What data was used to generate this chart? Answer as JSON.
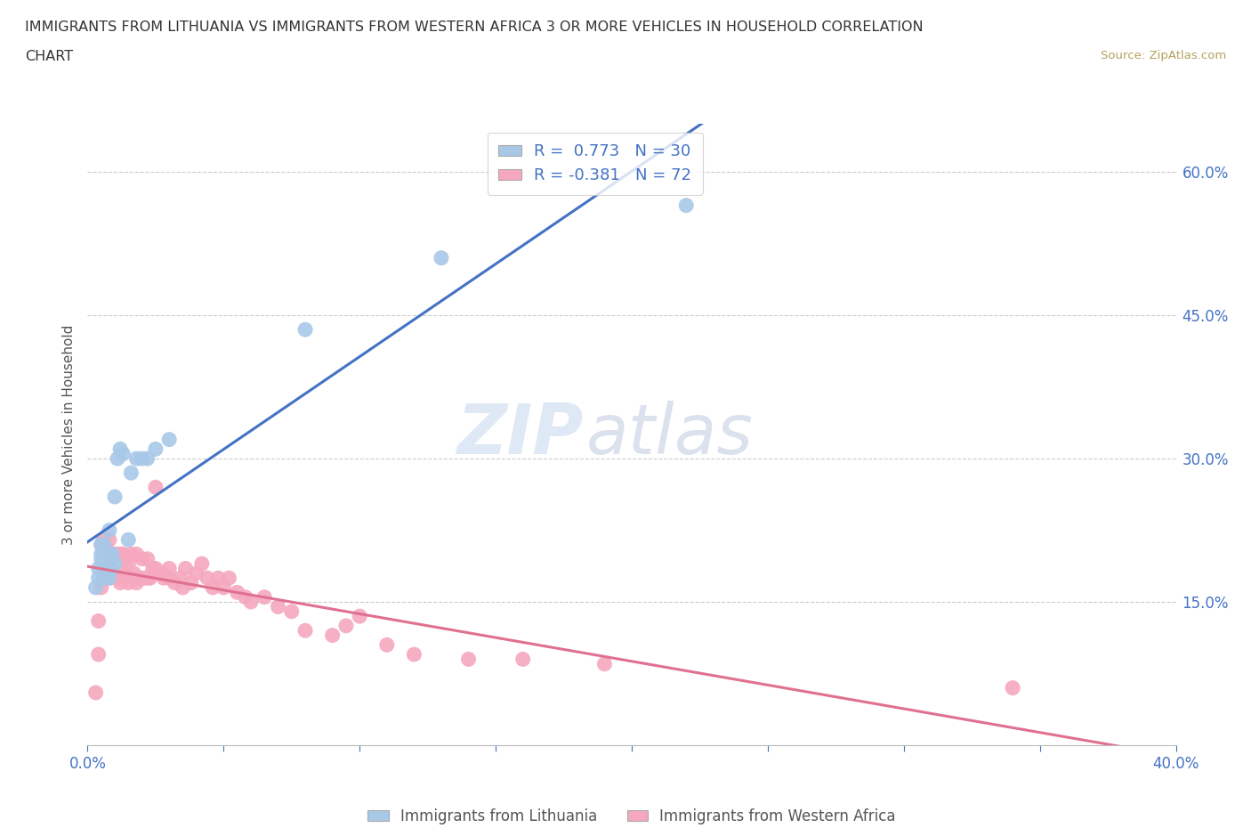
{
  "title_line1": "IMMIGRANTS FROM LITHUANIA VS IMMIGRANTS FROM WESTERN AFRICA 3 OR MORE VEHICLES IN HOUSEHOLD CORRELATION",
  "title_line2": "CHART",
  "source": "Source: ZipAtlas.com",
  "ylabel": "3 or more Vehicles in Household",
  "xlim": [
    0.0,
    0.4
  ],
  "ylim": [
    0.0,
    0.65
  ],
  "ytick_labels_right": [
    "60.0%",
    "45.0%",
    "30.0%",
    "15.0%"
  ],
  "ytick_positions_right": [
    0.6,
    0.45,
    0.3,
    0.15
  ],
  "R_lithuania": 0.773,
  "N_lithuania": 30,
  "R_western_africa": -0.381,
  "N_western_africa": 72,
  "color_lithuania": "#a8c8e8",
  "color_western_africa": "#f5a8be",
  "line_color_lithuania": "#4472c4",
  "line_color_western_africa": "#e07090",
  "watermark_zip": "ZIP",
  "watermark_atlas": "atlas",
  "legend_label_1": "R =  0.773   N = 30",
  "legend_label_2": "R = -0.381   N = 72",
  "bottom_label_1": "Immigrants from Lithuania",
  "bottom_label_2": "Immigrants from Western Africa",
  "lithuania_x": [
    0.003,
    0.004,
    0.004,
    0.005,
    0.005,
    0.005,
    0.006,
    0.006,
    0.007,
    0.007,
    0.008,
    0.008,
    0.008,
    0.009,
    0.009,
    0.01,
    0.01,
    0.011,
    0.012,
    0.013,
    0.015,
    0.016,
    0.018,
    0.02,
    0.022,
    0.025,
    0.03,
    0.08,
    0.13,
    0.22
  ],
  "lithuania_y": [
    0.165,
    0.175,
    0.185,
    0.195,
    0.2,
    0.21,
    0.175,
    0.21,
    0.185,
    0.2,
    0.175,
    0.2,
    0.225,
    0.185,
    0.2,
    0.19,
    0.26,
    0.3,
    0.31,
    0.305,
    0.215,
    0.285,
    0.3,
    0.3,
    0.3,
    0.31,
    0.32,
    0.435,
    0.51,
    0.565
  ],
  "western_africa_x": [
    0.003,
    0.004,
    0.004,
    0.005,
    0.005,
    0.006,
    0.006,
    0.007,
    0.007,
    0.008,
    0.008,
    0.009,
    0.009,
    0.01,
    0.01,
    0.011,
    0.011,
    0.012,
    0.012,
    0.013,
    0.013,
    0.014,
    0.014,
    0.015,
    0.015,
    0.016,
    0.016,
    0.017,
    0.018,
    0.018,
    0.019,
    0.02,
    0.02,
    0.021,
    0.022,
    0.022,
    0.023,
    0.024,
    0.025,
    0.025,
    0.027,
    0.028,
    0.03,
    0.03,
    0.032,
    0.034,
    0.035,
    0.036,
    0.038,
    0.04,
    0.042,
    0.044,
    0.046,
    0.048,
    0.05,
    0.052,
    0.055,
    0.058,
    0.06,
    0.065,
    0.07,
    0.075,
    0.08,
    0.09,
    0.095,
    0.1,
    0.11,
    0.12,
    0.14,
    0.16,
    0.19,
    0.34
  ],
  "western_africa_y": [
    0.055,
    0.095,
    0.13,
    0.165,
    0.21,
    0.175,
    0.215,
    0.185,
    0.205,
    0.175,
    0.215,
    0.185,
    0.2,
    0.18,
    0.2,
    0.175,
    0.2,
    0.17,
    0.2,
    0.18,
    0.2,
    0.175,
    0.195,
    0.17,
    0.19,
    0.175,
    0.2,
    0.18,
    0.17,
    0.2,
    0.175,
    0.175,
    0.195,
    0.175,
    0.175,
    0.195,
    0.175,
    0.185,
    0.185,
    0.27,
    0.18,
    0.175,
    0.175,
    0.185,
    0.17,
    0.175,
    0.165,
    0.185,
    0.17,
    0.18,
    0.19,
    0.175,
    0.165,
    0.175,
    0.165,
    0.175,
    0.16,
    0.155,
    0.15,
    0.155,
    0.145,
    0.14,
    0.12,
    0.115,
    0.125,
    0.135,
    0.105,
    0.095,
    0.09,
    0.09,
    0.085,
    0.06
  ]
}
